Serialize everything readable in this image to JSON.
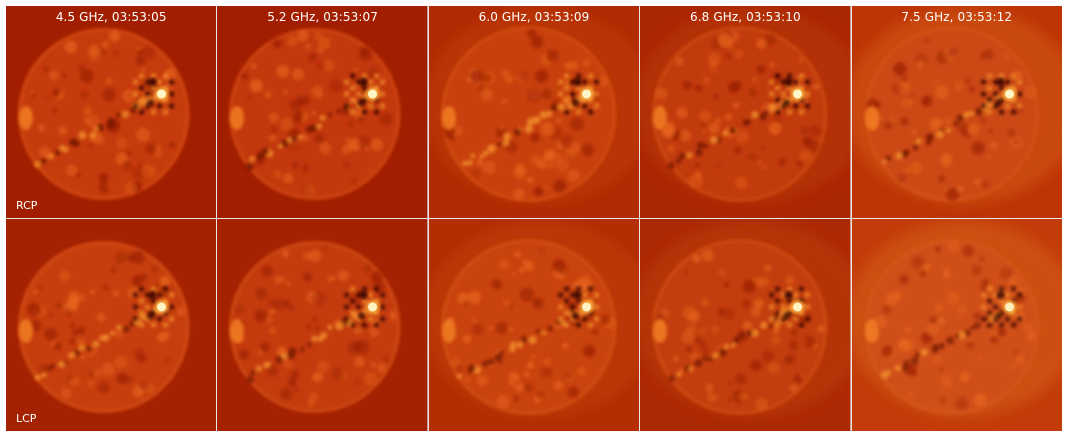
{
  "columns": [
    {
      "label": "4.5 GHz, 03:53:05",
      "bg": "#a21e00",
      "disk": "#c63a08"
    },
    {
      "label": "5.2 GHz, 03:53:07",
      "bg": "#a21e00",
      "disk": "#c33808"
    },
    {
      "label": "6.0 GHz, 03:53:09",
      "bg": "#b22a02",
      "disk": "#c84010"
    },
    {
      "label": "6.8 GHz, 03:53:10",
      "bg": "#ab2602",
      "disk": "#c23a0c"
    },
    {
      "label": "7.5 GHz, 03:53:12",
      "bg": "#be3406",
      "disk": "#cc4a12"
    }
  ],
  "rows": [
    {
      "label": "RCP"
    },
    {
      "label": "LCP"
    }
  ],
  "colors": {
    "bright_source": "#fff6c8",
    "dark_spot": "#2a0500",
    "limb_bright": "#f07a20"
  }
}
